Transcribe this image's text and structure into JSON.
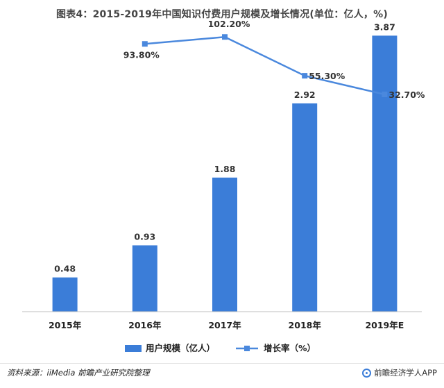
{
  "title": "图表4：2015-2019年中国知识付费用户规模及增长情况(单位：亿人，%)",
  "footer": {
    "source": "资料来源：iiMedia 前瞻产业研究院整理",
    "brand": "前瞻经济学人APP"
  },
  "colors": {
    "bar": "#3b7dd8",
    "line": "#4a88dd",
    "axis": "#bfbfbf"
  },
  "chart_data": {
    "type": "bar",
    "categories": [
      "2015年",
      "2016年",
      "2017年",
      "2018年",
      "2019年E"
    ],
    "series": [
      {
        "name": "用户规模（亿人）",
        "type": "bar",
        "values": [
          0.48,
          0.93,
          1.88,
          2.92,
          3.87
        ],
        "labels": [
          "0.48",
          "0.93",
          "1.88",
          "2.92",
          "3.87"
        ]
      },
      {
        "name": "增长率（%）",
        "type": "line",
        "values": [
          null,
          93.8,
          102.2,
          55.3,
          32.7
        ],
        "labels": [
          "",
          "93.80%",
          "102.20%",
          "55.30%",
          "32.70%"
        ]
      }
    ],
    "ylim_bar": [
      0,
      4.0
    ],
    "ylim_line": [
      -230,
      115
    ],
    "grid": false,
    "legend": "bottom"
  }
}
